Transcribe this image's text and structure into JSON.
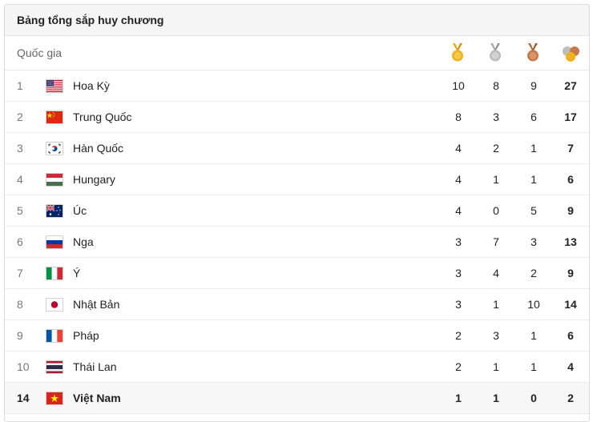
{
  "title": "Bảng tổng sắp huy chương",
  "header": {
    "country_label": "Quốc gia",
    "icons": {
      "gold": "gold-medal-icon",
      "silver": "silver-medal-icon",
      "bronze": "bronze-medal-icon",
      "total": "all-medals-icon"
    }
  },
  "colors": {
    "gold": "#f2b01e",
    "silver": "#bdbdbd",
    "bronze": "#c8794a",
    "highlight_row": "#f7f7f7"
  },
  "rows": [
    {
      "rank": "1",
      "country": "Hoa Kỳ",
      "flag": "us-flag-icon",
      "gold": "10",
      "silver": "8",
      "bronze": "9",
      "total": "27"
    },
    {
      "rank": "2",
      "country": "Trung Quốc",
      "flag": "china-flag-icon",
      "gold": "8",
      "silver": "3",
      "bronze": "6",
      "total": "17"
    },
    {
      "rank": "3",
      "country": "Hàn Quốc",
      "flag": "south-korea-flag-icon",
      "gold": "4",
      "silver": "2",
      "bronze": "1",
      "total": "7"
    },
    {
      "rank": "4",
      "country": "Hungary",
      "flag": "hungary-flag-icon",
      "gold": "4",
      "silver": "1",
      "bronze": "1",
      "total": "6"
    },
    {
      "rank": "5",
      "country": "Úc",
      "flag": "australia-flag-icon",
      "gold": "4",
      "silver": "0",
      "bronze": "5",
      "total": "9"
    },
    {
      "rank": "6",
      "country": "Nga",
      "flag": "russia-flag-icon",
      "gold": "3",
      "silver": "7",
      "bronze": "3",
      "total": "13"
    },
    {
      "rank": "7",
      "country": "Ý",
      "flag": "italy-flag-icon",
      "gold": "3",
      "silver": "4",
      "bronze": "2",
      "total": "9"
    },
    {
      "rank": "8",
      "country": "Nhật Bản",
      "flag": "japan-flag-icon",
      "gold": "3",
      "silver": "1",
      "bronze": "10",
      "total": "14"
    },
    {
      "rank": "9",
      "country": "Pháp",
      "flag": "france-flag-icon",
      "gold": "2",
      "silver": "3",
      "bronze": "1",
      "total": "6"
    },
    {
      "rank": "10",
      "country": "Thái Lan",
      "flag": "thailand-flag-icon",
      "gold": "2",
      "silver": "1",
      "bronze": "1",
      "total": "4"
    },
    {
      "rank": "14",
      "country": "Việt Nam",
      "flag": "vietnam-flag-icon",
      "gold": "1",
      "silver": "1",
      "bronze": "0",
      "total": "2",
      "highlight": true
    }
  ]
}
